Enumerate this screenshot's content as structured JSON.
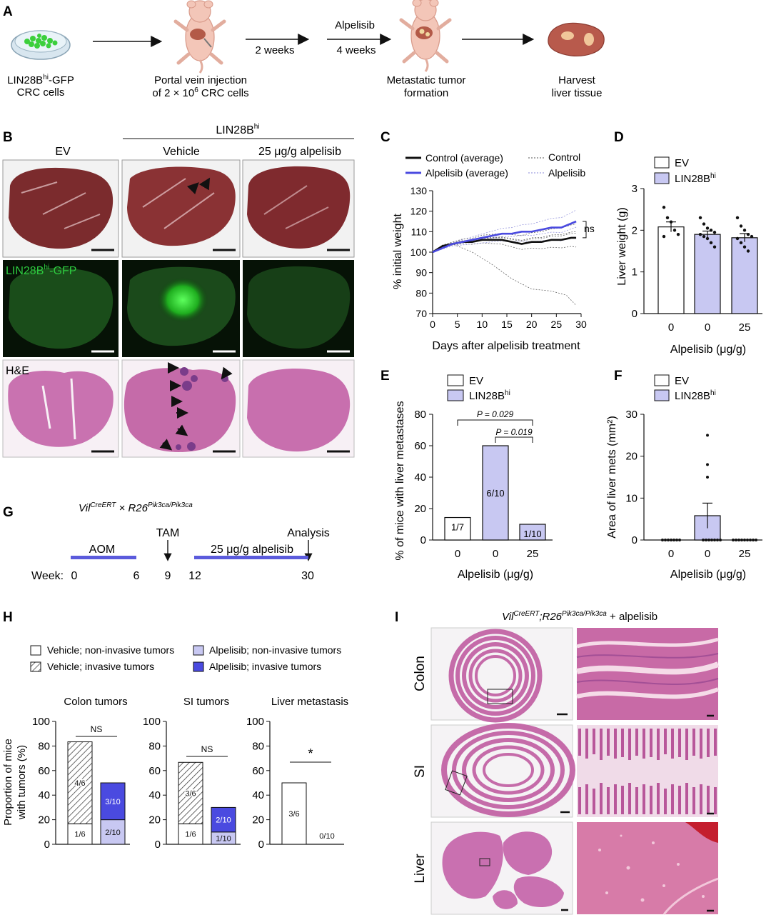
{
  "panel_letters": [
    "A",
    "B",
    "C",
    "D",
    "E",
    "F",
    "G",
    "H",
    "I"
  ],
  "colors": {
    "lavender": "#c8c8f2",
    "blue_dark": "#4a4ae0",
    "timeline_blue": "#5b5bdc",
    "liver_red": "#7a2a2a",
    "he_pink": "#c26aa8",
    "he_dark": "#8a3d8c",
    "gfp_green": "#2ecc40"
  },
  "panel_a": {
    "cells_label_1": "LIN28B",
    "cells_label_sup": "hi",
    "cells_label_2": "-GFP",
    "cells_label_3": "CRC cells",
    "injection_1": "Portal vein injection",
    "injection_2a": "of 2 × 10",
    "injection_2sup": "6",
    "injection_2b": " CRC cells",
    "arrow2_label": "2 weeks",
    "drug_label": "Alpelisib",
    "arrow3_label": "4 weeks",
    "tumor_1": "Metastatic tumor",
    "tumor_2": "formation",
    "harvest_1": "Harvest",
    "harvest_2": "liver tissue"
  },
  "panel_b": {
    "group_header": "LIN28B",
    "group_header_sup": "hi",
    "col_ev": "EV",
    "col_vehicle": "Vehicle",
    "col_alp": "25 μg/g alpelisib",
    "gfp_label": "LIN28B",
    "gfp_label_sup": "hi",
    "gfp_label_2": "-GFP",
    "he_label": "H&E"
  },
  "panel_c": {
    "chart_data": {
      "type": "line",
      "xlabel": "Days after alpelisib treatment",
      "ylabel": "% initial weight",
      "xlim": [
        0,
        30
      ],
      "ylim": [
        70,
        130
      ],
      "xticks": [
        0,
        5,
        10,
        15,
        20,
        25,
        30
      ],
      "yticks": [
        70,
        80,
        90,
        100,
        110,
        120,
        130
      ],
      "legend": [
        "Control  (average)",
        "Alpelisib (average)",
        "Control",
        "Alpelisib"
      ],
      "annotation": "ns",
      "series": [
        {
          "name": "Control  (average)",
          "x": [
            0,
            2,
            4,
            6,
            8,
            10,
            12,
            14,
            16,
            18,
            20,
            22,
            24,
            26,
            28,
            29
          ],
          "y": [
            100,
            103,
            104,
            105,
            105,
            106,
            106,
            106,
            105,
            104,
            105,
            105,
            106,
            106,
            107,
            107
          ]
        },
        {
          "name": "Alpelisib (average)",
          "x": [
            0,
            2,
            4,
            6,
            8,
            10,
            12,
            14,
            16,
            18,
            20,
            22,
            24,
            26,
            28,
            29
          ],
          "y": [
            100,
            102,
            104,
            105,
            106,
            107,
            108,
            109,
            109,
            110,
            110,
            111,
            112,
            112,
            114,
            115
          ]
        }
      ]
    }
  },
  "panel_d": {
    "chart_data": {
      "type": "bar",
      "categories": [
        "0",
        "0",
        "25"
      ],
      "values": [
        2.08,
        1.9,
        1.82
      ],
      "errors": [
        0.12,
        0.08,
        0.1
      ],
      "points": [
        [
          2.55,
          2.3,
          2.2,
          2.0,
          1.9,
          1.85
        ],
        [
          2.3,
          2.15,
          2.05,
          2.0,
          1.95,
          1.9,
          1.85,
          1.8,
          1.7,
          1.6
        ],
        [
          2.3,
          2.1,
          2.0,
          1.9,
          1.85,
          1.8,
          1.7,
          1.6,
          1.5
        ]
      ],
      "ylabel": "Liver weight (g)",
      "xlabel": "Alpelisib (μg/g)",
      "ylim": [
        0,
        3
      ],
      "yticks": [
        0,
        1,
        2,
        3
      ],
      "legend": [
        "EV",
        "LIN28B"
      ],
      "legend_sup": "hi"
    }
  },
  "panel_e": {
    "chart_data": {
      "type": "bar",
      "categories": [
        "0",
        "0",
        "25"
      ],
      "values": [
        14.3,
        60,
        10
      ],
      "bar_labels": [
        "1/7",
        "6/10",
        "1/10"
      ],
      "ylabel": "% of mice with liver metastases",
      "xlabel": "Alpelisib (μg/g)",
      "ylim": [
        0,
        80
      ],
      "yticks": [
        0,
        20,
        40,
        60,
        80
      ],
      "legend": [
        "EV",
        "LIN28B"
      ],
      "legend_sup": "hi",
      "p1": "P = 0.029",
      "p2": "P = 0.019"
    }
  },
  "panel_f": {
    "chart_data": {
      "type": "scatter",
      "categories": [
        "0",
        "0",
        "25"
      ],
      "values": [
        0,
        5.8,
        0
      ],
      "errors": [
        0,
        3.0,
        0
      ],
      "points": [
        [
          0,
          0,
          0,
          0,
          0,
          0,
          0
        ],
        [
          25,
          18,
          15,
          0,
          0,
          0,
          0,
          0,
          0,
          0
        ],
        [
          0,
          0,
          0,
          0,
          0,
          0,
          0,
          0,
          0
        ]
      ],
      "ylabel": "Area of liver mets (mm²)",
      "xlabel": "Alpelisib (μg/g)",
      "ylim": [
        0,
        30
      ],
      "yticks": [
        0,
        10,
        20,
        30
      ],
      "legend": [
        "EV",
        "LIN28B"
      ],
      "legend_sup": "hi"
    }
  },
  "panel_g": {
    "title_vil": "Vil",
    "title_sup1": "CreERT",
    "title_mid": " × R26",
    "title_sup2": "Pik3ca/Pik3ca",
    "aom": "AOM",
    "tam": "TAM",
    "alp": "25 μg/g alpelisib",
    "analysis": "Analysis",
    "week_label": "Week:",
    "weeks": [
      "0",
      "6",
      "9",
      "12",
      "30"
    ]
  },
  "panel_h": {
    "legend": [
      "Vehicle; non-invasive tumors",
      "Vehicle; invasive tumors",
      "Alpelisib; non-invasive tumors",
      "Alpelisib; invasive tumors"
    ],
    "ylabel_1": "Proportion of mice",
    "ylabel_2": "with tumors (%)",
    "yticks": [
      0,
      20,
      40,
      60,
      80,
      100
    ],
    "chart_data": [
      {
        "type": "bar",
        "title": "Colon tumors",
        "stat": "NS",
        "series": [
          {
            "name": "non-invasive",
            "values": [
              16.7,
              20
            ]
          },
          {
            "name": "invasive",
            "values": [
              66.7,
              30
            ]
          }
        ],
        "labels": [
          [
            "1/6",
            "4/6"
          ],
          [
            "2/10",
            "3/10"
          ]
        ],
        "ylim": [
          0,
          100
        ]
      },
      {
        "type": "bar",
        "title": "SI tumors",
        "stat": "NS",
        "series": [
          {
            "name": "non-invasive",
            "values": [
              16.7,
              10
            ]
          },
          {
            "name": "invasive",
            "values": [
              50,
              20
            ]
          }
        ],
        "labels": [
          [
            "1/6",
            "3/6"
          ],
          [
            "1/10",
            "2/10"
          ]
        ],
        "ylim": [
          0,
          100
        ]
      },
      {
        "type": "bar",
        "title": "Liver metastasis",
        "stat": "*",
        "series": [
          {
            "name": "non-invasive",
            "values": [
              50,
              0
            ]
          }
        ],
        "labels": [
          [
            "3/6"
          ],
          [
            "0/10"
          ]
        ],
        "ylim": [
          0,
          100
        ]
      }
    ]
  },
  "panel_i": {
    "title_vil": "Vil",
    "title_sup1": "CreERT",
    "title_mid": ";R26",
    "title_sup2": "Pik3ca/Pik3ca",
    "title_end": " + alpelisib",
    "rows": [
      "Colon",
      "SI",
      "Liver"
    ]
  }
}
